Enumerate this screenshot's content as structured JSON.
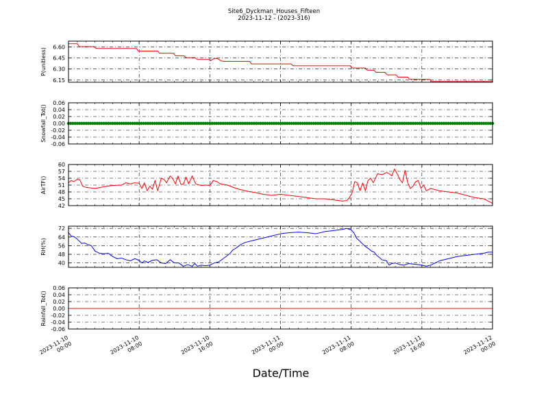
{
  "title": "Site6_Dyckman_Houses_Fifteen",
  "subtitle": "2023-11-12 - (2023-316)",
  "xlabel": "Date/Time",
  "x_ticks": [
    {
      "t": 0,
      "line1": "2023-11-10",
      "line2": "00:00"
    },
    {
      "t": 8,
      "line1": "2023-11-10",
      "line2": "08:00"
    },
    {
      "t": 16,
      "line1": "2023-11-10",
      "line2": "16:00"
    },
    {
      "t": 24,
      "line1": "2023-11-11",
      "line2": "00:00"
    },
    {
      "t": 32,
      "line1": "2023-11-11",
      "line2": "08:00"
    },
    {
      "t": 40,
      "line1": "2023-11-11",
      "line2": "16:00"
    },
    {
      "t": 48,
      "line1": "2023-11-12",
      "line2": "00:00"
    }
  ],
  "chart_data": [
    {
      "type": "line",
      "ylabel": "P(unitless)",
      "ylim": [
        6.12,
        6.68
      ],
      "yticks": [
        6.15,
        6.3,
        6.45,
        6.6
      ],
      "ytick_labels": [
        "6.15",
        "6.30",
        "6.45",
        "6.60"
      ],
      "color": "#ff0000",
      "grid": true,
      "series": [
        {
          "x": [
            0,
            1,
            1.2,
            2.9,
            3.1,
            7.7,
            7.9,
            10.1,
            10.3,
            11.9,
            12.1,
            13.1,
            13.3,
            14.3,
            14.6,
            15.9,
            16.1,
            16.5,
            16.9,
            17.3,
            17.6,
            20.5,
            20.7,
            25.2,
            25.4,
            31.9,
            32.1,
            33.6,
            33.8,
            34.6,
            34.8,
            35.8,
            36.1,
            37.1,
            37.3,
            38.4,
            38.6,
            40.9,
            41.1,
            48
          ],
          "y": [
            6.645,
            6.645,
            6.605,
            6.605,
            6.58,
            6.58,
            6.545,
            6.545,
            6.515,
            6.515,
            6.48,
            6.48,
            6.455,
            6.455,
            6.43,
            6.43,
            6.415,
            6.445,
            6.44,
            6.41,
            6.405,
            6.405,
            6.37,
            6.37,
            6.345,
            6.345,
            6.315,
            6.315,
            6.285,
            6.285,
            6.255,
            6.255,
            6.22,
            6.22,
            6.19,
            6.19,
            6.16,
            6.16,
            6.13,
            6.13
          ]
        }
      ]
    },
    {
      "type": "scatter",
      "ylabel": "Snowfall_Tot()",
      "ylim": [
        -0.06,
        0.06
      ],
      "yticks": [
        -0.06,
        -0.04,
        -0.02,
        0.0,
        0.02,
        0.04,
        0.06
      ],
      "ytick_labels": [
        "-0.06",
        "-0.04",
        "-0.02",
        "0.00",
        "0.02",
        "0.04",
        "0.06"
      ],
      "color": "#008000",
      "grid": true,
      "series": [
        {
          "x_start": 0,
          "x_end": 48,
          "y": 0.0
        }
      ]
    },
    {
      "type": "line",
      "ylabel": "AirTF()",
      "ylim": [
        42,
        60
      ],
      "yticks": [
        42,
        45,
        48,
        51,
        54,
        57,
        60
      ],
      "ytick_labels": [
        "42",
        "45",
        "48",
        "51",
        "54",
        "57",
        "60"
      ],
      "color": "#ff0000",
      "grid": true,
      "series": [
        {
          "x": [
            0,
            0.3,
            0.6,
            1,
            1.3,
            1.6,
            2,
            3,
            4,
            5,
            6,
            6.5,
            7,
            7.5,
            8,
            8.3,
            8.6,
            8.9,
            9.2,
            9.5,
            9.8,
            10.1,
            10.5,
            10.8,
            11.1,
            11.5,
            11.8,
            12.1,
            12.4,
            12.7,
            13,
            13.3,
            13.6,
            14,
            14.4,
            15,
            15.5,
            16,
            16.4,
            16.8,
            17.2,
            18,
            19,
            20,
            21,
            22,
            23,
            24,
            25,
            26,
            27,
            28,
            29,
            30,
            31,
            31.5,
            31.8,
            32.1,
            32.4,
            32.7,
            33,
            33.3,
            33.6,
            33.9,
            34.2,
            34.5,
            35,
            35.5,
            36,
            36.3,
            36.6,
            36.9,
            37.2,
            37.5,
            37.8,
            38.1,
            38.4,
            38.7,
            39,
            39.3,
            39.6,
            39.9,
            40.2,
            40.5,
            41,
            42,
            43,
            44,
            45,
            46,
            47,
            47.5,
            48
          ],
          "y": [
            52,
            53,
            52.5,
            53.5,
            53.2,
            50.5,
            50,
            49.5,
            50.3,
            50.8,
            51,
            52,
            51.5,
            52,
            51.8,
            49.5,
            52,
            48.5,
            50.5,
            49.2,
            53,
            48.5,
            54,
            53.5,
            52,
            55,
            53.8,
            51.5,
            55,
            51.5,
            51.3,
            54.5,
            51.5,
            55,
            51.5,
            50.8,
            51,
            50.8,
            53,
            52.5,
            51.5,
            51,
            49.5,
            48.5,
            47.8,
            47,
            46.5,
            47,
            46.5,
            46,
            45.5,
            45,
            45,
            44.5,
            44,
            44.2,
            45.5,
            47.5,
            52.5,
            52,
            48.5,
            52,
            48.5,
            53,
            54,
            52,
            56,
            55.5,
            56.5,
            56,
            55,
            58,
            56,
            53.5,
            52,
            57.5,
            52,
            49.5,
            50.5,
            52.5,
            53,
            49.5,
            51,
            48.5,
            49.5,
            48.5,
            48,
            47.5,
            46.5,
            45.5,
            45,
            44,
            43
          ]
        }
      ]
    },
    {
      "type": "line",
      "ylabel": "RH(%)",
      "ylim": [
        36,
        74
      ],
      "yticks": [
        40,
        48,
        56,
        64,
        72
      ],
      "ytick_labels": [
        "40",
        "48",
        "56",
        "64",
        "72"
      ],
      "color": "#0000ff",
      "grid": true,
      "series": [
        {
          "x": [
            0,
            0.3,
            0.7,
            1,
            1.5,
            1.8,
            2.2,
            2.6,
            3,
            3.5,
            4,
            4.5,
            5,
            5.5,
            6,
            6.5,
            7,
            7.5,
            8,
            8.3,
            8.6,
            9,
            9.5,
            10,
            10.5,
            11,
            11.5,
            12,
            12.5,
            13,
            13.5,
            14,
            14.3,
            14.6,
            15,
            15.5,
            16,
            16.5,
            17,
            17.5,
            18,
            18.3,
            18.6,
            19,
            19.5,
            20,
            21,
            22,
            23,
            24,
            25,
            26,
            27,
            28,
            29,
            30,
            31,
            31.5,
            32,
            32.3,
            32.6,
            33,
            33.5,
            34,
            34.3,
            34.6,
            34.9,
            35.2,
            35.5,
            36,
            36.3,
            36.6,
            37,
            37.5,
            38,
            38.5,
            39,
            39.5,
            40,
            40.5,
            41,
            42,
            43,
            44,
            45,
            46,
            47,
            47.5,
            48
          ],
          "y": [
            68,
            65,
            64,
            62,
            58,
            58.5,
            57,
            56,
            51,
            49,
            48.5,
            49,
            46,
            44,
            44.5,
            43,
            42,
            44,
            42.5,
            40,
            42,
            40.5,
            42.5,
            43,
            40,
            39.5,
            43,
            40,
            40,
            37,
            38.5,
            37,
            39.5,
            37,
            38,
            37.5,
            38,
            40,
            41,
            44,
            47,
            49,
            52,
            54,
            57,
            59,
            61,
            63,
            65,
            67,
            68,
            68.5,
            68,
            67,
            69,
            70,
            71,
            72,
            70.5,
            68,
            63,
            60,
            56,
            53,
            51,
            50,
            47,
            45,
            43,
            42,
            38,
            39.5,
            40,
            38.5,
            38,
            39.5,
            39,
            38.5,
            38,
            37,
            38,
            42,
            44,
            46,
            47,
            48,
            49,
            50,
            50
          ]
        }
      ]
    },
    {
      "type": "line",
      "ylabel": "Rainfall_Tot()",
      "ylim": [
        -0.06,
        0.06
      ],
      "yticks": [
        -0.06,
        -0.04,
        -0.02,
        0.0,
        0.02,
        0.04,
        0.06
      ],
      "ytick_labels": [
        "-0.06",
        "-0.04",
        "-0.02",
        "0.00",
        "0.02",
        "0.04",
        "0.06"
      ],
      "color": "#ff0000",
      "grid": true,
      "series": [
        {
          "x": [
            0,
            48
          ],
          "y": [
            0.0,
            0.0
          ]
        }
      ]
    }
  ]
}
